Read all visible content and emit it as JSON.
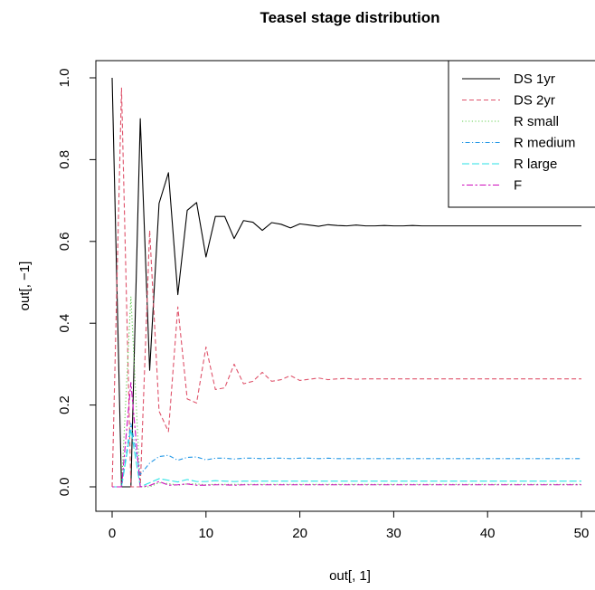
{
  "chart_data": {
    "type": "line",
    "title": "Teasel stage distribution",
    "xlabel": "out[, 1]",
    "ylabel": "out[, −1]",
    "xlim": [
      0,
      50
    ],
    "ylim": [
      0,
      1
    ],
    "x_ticks": [
      "0",
      "10",
      "20",
      "30",
      "40",
      "50"
    ],
    "y_ticks": [
      "0.0",
      "0.2",
      "0.4",
      "0.6",
      "0.8",
      "1.0"
    ],
    "legend_position": "top-right",
    "x": [
      0,
      1,
      2,
      3,
      4,
      5,
      6,
      7,
      8,
      9,
      10,
      11,
      12,
      13,
      14,
      15,
      16,
      17,
      18,
      19,
      20,
      21,
      22,
      23,
      24,
      25,
      26,
      27,
      28,
      29,
      30,
      31,
      32,
      33,
      34,
      35,
      36,
      37,
      38,
      39,
      40,
      41,
      42,
      43,
      44,
      45,
      46,
      47,
      48,
      49,
      50
    ],
    "series": [
      {
        "name": "DS 1yr",
        "color": "#000000",
        "dash": "solid",
        "values": [
          1.0,
          0.0,
          0.0,
          0.9,
          0.285,
          0.693,
          0.768,
          0.47,
          0.676,
          0.695,
          0.562,
          0.661,
          0.661,
          0.607,
          0.651,
          0.647,
          0.627,
          0.646,
          0.642,
          0.633,
          0.643,
          0.64,
          0.637,
          0.641,
          0.639,
          0.638,
          0.64,
          0.638,
          0.638,
          0.639,
          0.638,
          0.638,
          0.639,
          0.638,
          0.638,
          0.638,
          0.638,
          0.638,
          0.638,
          0.638,
          0.638,
          0.638,
          0.638,
          0.638,
          0.638,
          0.638,
          0.638,
          0.638,
          0.638,
          0.638,
          0.638
        ]
      },
      {
        "name": "DS 2yr",
        "color": "#DF536B",
        "dash": "dashed",
        "values": [
          0.0,
          0.975,
          0.0,
          0.0,
          0.627,
          0.185,
          0.135,
          0.44,
          0.215,
          0.205,
          0.342,
          0.238,
          0.242,
          0.3,
          0.252,
          0.258,
          0.28,
          0.258,
          0.262,
          0.272,
          0.26,
          0.263,
          0.266,
          0.262,
          0.264,
          0.265,
          0.263,
          0.264,
          0.264,
          0.264,
          0.264,
          0.264,
          0.264,
          0.264,
          0.264,
          0.264,
          0.264,
          0.264,
          0.264,
          0.264,
          0.264,
          0.264,
          0.264,
          0.264,
          0.264,
          0.264,
          0.264,
          0.264,
          0.264,
          0.264,
          0.264
        ]
      },
      {
        "name": "R small",
        "color": "#61D04F",
        "dash": "dotted",
        "values": [
          0.0,
          0.0,
          0.465,
          0.0,
          0.0,
          0.01,
          0.008,
          0.004,
          0.007,
          0.007,
          0.005,
          0.006,
          0.006,
          0.006,
          0.006,
          0.006,
          0.006,
          0.006,
          0.006,
          0.006,
          0.006,
          0.006,
          0.006,
          0.006,
          0.006,
          0.006,
          0.006,
          0.006,
          0.006,
          0.006,
          0.006,
          0.006,
          0.006,
          0.006,
          0.006,
          0.006,
          0.006,
          0.006,
          0.006,
          0.006,
          0.006,
          0.006,
          0.006,
          0.006,
          0.006,
          0.006,
          0.006,
          0.006,
          0.006,
          0.006,
          0.006
        ]
      },
      {
        "name": "R medium",
        "color": "#2297E6",
        "dash": "dotdash",
        "values": [
          0.0,
          0.0,
          0.155,
          0.03,
          0.058,
          0.074,
          0.077,
          0.065,
          0.072,
          0.073,
          0.066,
          0.07,
          0.07,
          0.068,
          0.07,
          0.07,
          0.069,
          0.07,
          0.07,
          0.069,
          0.07,
          0.07,
          0.069,
          0.07,
          0.069,
          0.069,
          0.069,
          0.069,
          0.069,
          0.069,
          0.069,
          0.069,
          0.069,
          0.069,
          0.069,
          0.069,
          0.069,
          0.069,
          0.069,
          0.069,
          0.069,
          0.069,
          0.069,
          0.069,
          0.069,
          0.069,
          0.069,
          0.069,
          0.069,
          0.069,
          0.069
        ]
      },
      {
        "name": "R large",
        "color": "#28E2E5",
        "dash": "longdash",
        "values": [
          0.0,
          0.0,
          0.14,
          0.0,
          0.01,
          0.02,
          0.016,
          0.012,
          0.018,
          0.013,
          0.013,
          0.015,
          0.014,
          0.013,
          0.014,
          0.014,
          0.014,
          0.014,
          0.014,
          0.014,
          0.014,
          0.014,
          0.014,
          0.014,
          0.014,
          0.014,
          0.014,
          0.014,
          0.014,
          0.014,
          0.014,
          0.014,
          0.014,
          0.014,
          0.014,
          0.014,
          0.014,
          0.014,
          0.014,
          0.014,
          0.014,
          0.014,
          0.014,
          0.014,
          0.014,
          0.014,
          0.014,
          0.014,
          0.014,
          0.014,
          0.014
        ]
      },
      {
        "name": "F",
        "color": "#CD0BBC",
        "dash": "twodash",
        "values": [
          0.0,
          0.0,
          0.255,
          0.0,
          0.003,
          0.013,
          0.004,
          0.005,
          0.007,
          0.004,
          0.004,
          0.005,
          0.005,
          0.004,
          0.005,
          0.005,
          0.005,
          0.005,
          0.005,
          0.005,
          0.005,
          0.005,
          0.005,
          0.005,
          0.005,
          0.005,
          0.005,
          0.005,
          0.005,
          0.005,
          0.005,
          0.005,
          0.005,
          0.005,
          0.005,
          0.005,
          0.005,
          0.005,
          0.005,
          0.005,
          0.005,
          0.005,
          0.005,
          0.005,
          0.005,
          0.005,
          0.005,
          0.005,
          0.005,
          0.005,
          0.005
        ]
      }
    ]
  }
}
